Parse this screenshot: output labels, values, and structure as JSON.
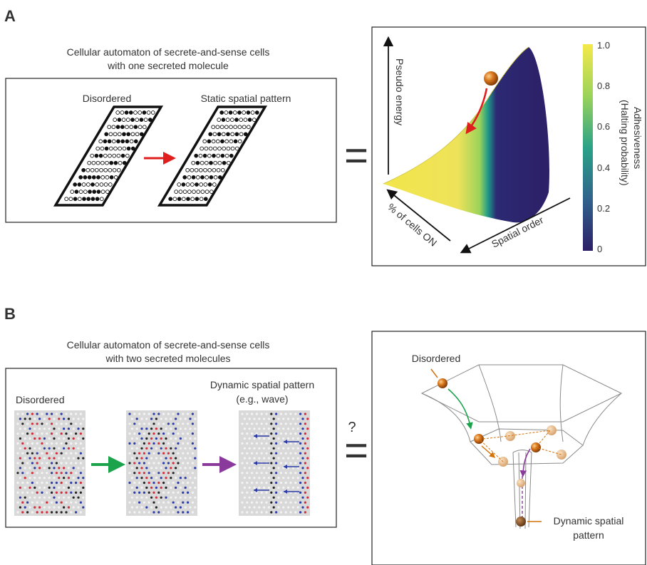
{
  "panel_a": {
    "letter": "A",
    "caption_line1": "Cellular automaton of secrete-and-sense cells",
    "caption_line2": "with one secreted molecule",
    "grid_disordered_label": "Disordered",
    "grid_static_label": "Static spatial pattern",
    "equals_sign": "=",
    "axis_pseudo_energy": "Pseudo energy",
    "axis_cells_on": "% of cells ON",
    "axis_spatial_order": "Spatial order",
    "colorbar": {
      "title_line1": "Adhesiveness",
      "title_line2": "(Halting probability)",
      "ticks": [
        "1.0",
        "0.8",
        "0.6",
        "0.4",
        "0.2",
        "0"
      ],
      "color_high": "#f5e94a",
      "color_low": "#2c1f67"
    }
  },
  "panel_b": {
    "letter": "B",
    "caption_line1": "Cellular automaton of secrete-and-sense cells",
    "caption_line2": "with two secreted molecules",
    "lattice_disordered_label": "Disordered",
    "lattice_dynamic_label_line1": "Dynamic spatial pattern",
    "lattice_dynamic_label_line2": "(e.g., wave)",
    "question_mark": "?",
    "equals_sign": "=",
    "landscape_disordered_label": "Disordered",
    "landscape_dynamic_label_line1": "Dynamic spatial",
    "landscape_dynamic_label_line2": "pattern",
    "accent_color": "#d4720a",
    "arrow_green": "#1aa34a",
    "arrow_purple": "#8a3a9a",
    "arrow_red": "#e01e1e",
    "cell_red": "#d42a3a",
    "cell_blue": "#2a3aa8"
  }
}
